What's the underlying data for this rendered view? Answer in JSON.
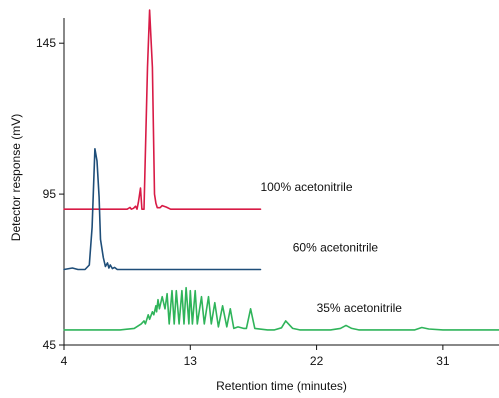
{
  "chart_data": {
    "type": "line",
    "title": "",
    "xlabel": "Retention time (minutes)",
    "ylabel": "Detector response (mV)",
    "xlim": [
      4,
      35
    ],
    "ylim": [
      45,
      156
    ],
    "xticks": [
      4,
      13,
      22,
      31
    ],
    "yticks": [
      45,
      95,
      145
    ],
    "grid": false,
    "series": [
      {
        "name": "100% acetonitrile",
        "color": "#d81b46",
        "x": [
          4.0,
          8.5,
          8.7,
          8.8,
          8.95,
          9.1,
          9.2,
          9.3,
          9.45,
          9.55,
          9.7,
          9.95,
          10.1,
          10.3,
          10.45,
          10.55,
          10.65,
          10.85,
          11.0,
          11.3,
          11.6,
          12.0,
          18.0
        ],
        "values": [
          90,
          90,
          90.6,
          90,
          90.3,
          91,
          90,
          92.3,
          97,
          90,
          90,
          137,
          156,
          137,
          95,
          92,
          90.5,
          90.5,
          91.2,
          90.7,
          90,
          90,
          90
        ]
      },
      {
        "name": "60% acetonitrile",
        "color": "#1f4e79",
        "x": [
          4.0,
          4.6,
          5.0,
          5.5,
          5.8,
          6.0,
          6.2,
          6.35,
          6.5,
          6.6,
          6.8,
          6.95,
          7.1,
          7.2,
          7.3,
          7.45,
          7.6,
          7.8,
          8.0,
          18.0
        ],
        "values": [
          70,
          70.5,
          70,
          70,
          71.5,
          84,
          110,
          106,
          94,
          80,
          74,
          71,
          72.2,
          70.5,
          71.5,
          70.3,
          70.7,
          70,
          70,
          70
        ]
      },
      {
        "name": "35% acetonitrile",
        "color": "#2fb45a",
        "x": [
          4.0,
          8.0,
          9.0,
          9.5,
          9.7,
          9.8,
          10.0,
          10.1,
          10.3,
          10.4,
          10.55,
          10.6,
          10.7,
          10.8,
          11.0,
          11.2,
          11.35,
          11.5,
          11.7,
          11.85,
          12.0,
          12.2,
          12.4,
          12.55,
          12.7,
          12.9,
          13.0,
          13.15,
          13.35,
          13.5,
          13.8,
          14.0,
          14.3,
          14.5,
          14.75,
          15.0,
          15.3,
          15.6,
          15.85,
          16.1,
          16.4,
          16.8,
          17.0,
          17.3,
          17.6,
          18.5,
          19.0,
          19.5,
          19.8,
          20.3,
          20.8,
          21.5,
          23.0,
          23.7,
          24.1,
          24.5,
          25.0,
          29.0,
          29.5,
          30.0,
          31.0,
          35.0
        ],
        "values": [
          50,
          50,
          50.5,
          52,
          53,
          52,
          55,
          53.5,
          56,
          55,
          58,
          56,
          60,
          57,
          61,
          57,
          62,
          52,
          63,
          52,
          63,
          52,
          63,
          52,
          64,
          52,
          63,
          52,
          63,
          52,
          61,
          52,
          61,
          52,
          59,
          51,
          58,
          51,
          57,
          50.5,
          51,
          50.5,
          50.5,
          57,
          50.5,
          50,
          50,
          50.7,
          53,
          50.5,
          50,
          50,
          50,
          50.5,
          51.5,
          50.5,
          50,
          50,
          50.8,
          50.3,
          50,
          50
        ]
      }
    ],
    "annotations": [
      {
        "text": "100% acetonitrile",
        "x": 18.0,
        "y": 96
      },
      {
        "text": "60% acetonitrile",
        "x": 20.3,
        "y": 76
      },
      {
        "text": "35% acetonitrile",
        "x": 22.0,
        "y": 56
      }
    ]
  }
}
